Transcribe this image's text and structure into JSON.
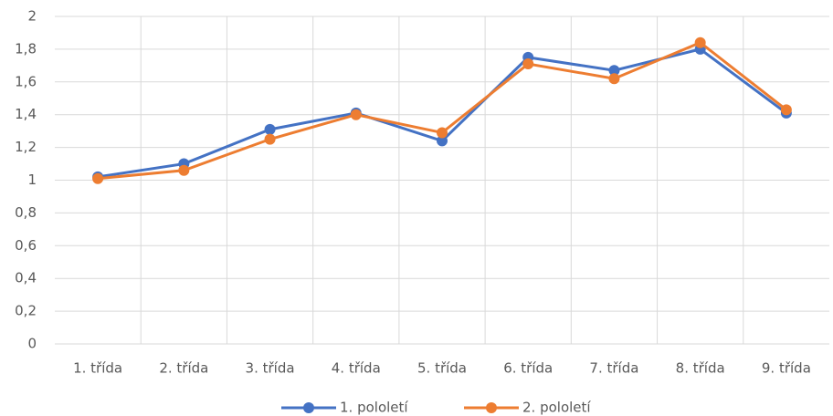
{
  "chart_data": {
    "type": "line",
    "categories": [
      "1. třída",
      "2. třída",
      "3. třída",
      "4. třída",
      "5. třída",
      "6. třída",
      "7. třída",
      "8. třída",
      "9. třída"
    ],
    "series": [
      {
        "name": "1. pololetí",
        "color": "#4472c4",
        "values": [
          1.02,
          1.1,
          1.31,
          1.41,
          1.24,
          1.75,
          1.67,
          1.8,
          1.41
        ]
      },
      {
        "name": "2. pololetí",
        "color": "#ed7d31",
        "values": [
          1.01,
          1.06,
          1.25,
          1.4,
          1.29,
          1.71,
          1.62,
          1.84,
          1.43
        ]
      }
    ],
    "ylim": [
      0,
      2
    ],
    "yticks": [
      0,
      {
        "value": 0.2,
        "label": "0,2"
      },
      {
        "value": 0.4,
        "label": "0,4"
      },
      {
        "value": 0.6,
        "label": "0,6"
      },
      {
        "value": 0.8,
        "label": "0,8"
      },
      1,
      {
        "value": 1.2,
        "label": "1,2"
      },
      {
        "value": 1.4,
        "label": "1,4"
      },
      {
        "value": 1.6,
        "label": "1,6"
      },
      {
        "value": 1.8,
        "label": "1,8"
      },
      2
    ],
    "grid": true,
    "legend": "bottom"
  }
}
